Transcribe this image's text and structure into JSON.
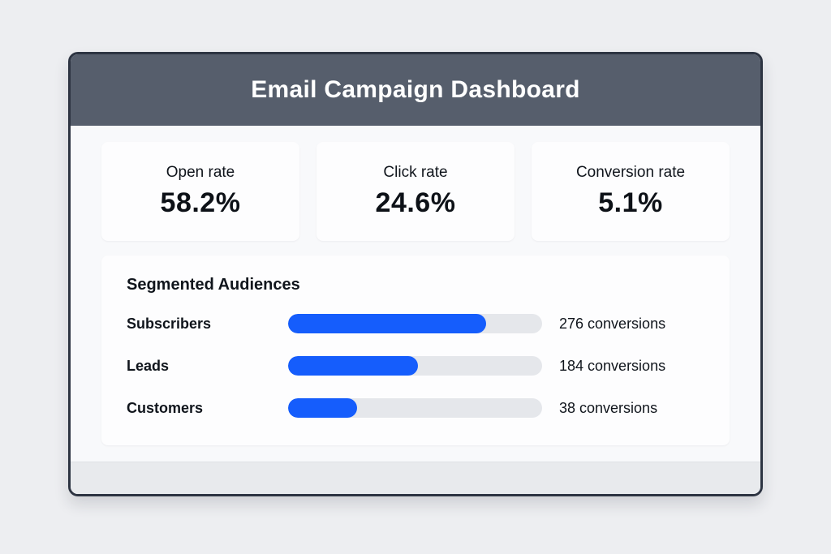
{
  "page": {
    "background": "#edeef1"
  },
  "panel": {
    "border_color": "#2d3442",
    "content_background": "#f8f9fb",
    "card_background": "#fdfdfe",
    "footer_background": "#e8eaed"
  },
  "header": {
    "title": "Email Campaign Dashboard",
    "background": "#565e6c",
    "text_color": "#ffffff"
  },
  "stats": [
    {
      "label": "Open rate",
      "value": "58.2%"
    },
    {
      "label": "Click rate",
      "value": "24.6%"
    },
    {
      "label": "Conversion rate",
      "value": "5.1%"
    }
  ],
  "audiences": {
    "title": "Segmented Audiences",
    "bar_fill_color": "#155dfc",
    "bar_track_color": "#e5e7eb",
    "rows": [
      {
        "label": "Subscribers",
        "conversions": "276 conversions",
        "fill_percent": 78
      },
      {
        "label": "Leads",
        "conversions": "184 conversions",
        "fill_percent": 51
      },
      {
        "label": "Customers",
        "conversions": "38 conversions",
        "fill_percent": 27
      }
    ]
  },
  "chart_data": {
    "type": "bar",
    "title": "Segmented Audiences",
    "categories": [
      "Subscribers",
      "Leads",
      "Customers"
    ],
    "values": [
      276,
      184,
      38
    ],
    "value_labels": [
      "276 conversions",
      "184 conversions",
      "38 conversions"
    ],
    "bar_fill_percents": [
      78,
      51,
      27
    ],
    "xlabel": "",
    "ylabel": "conversions",
    "legend": false,
    "grid": false
  }
}
